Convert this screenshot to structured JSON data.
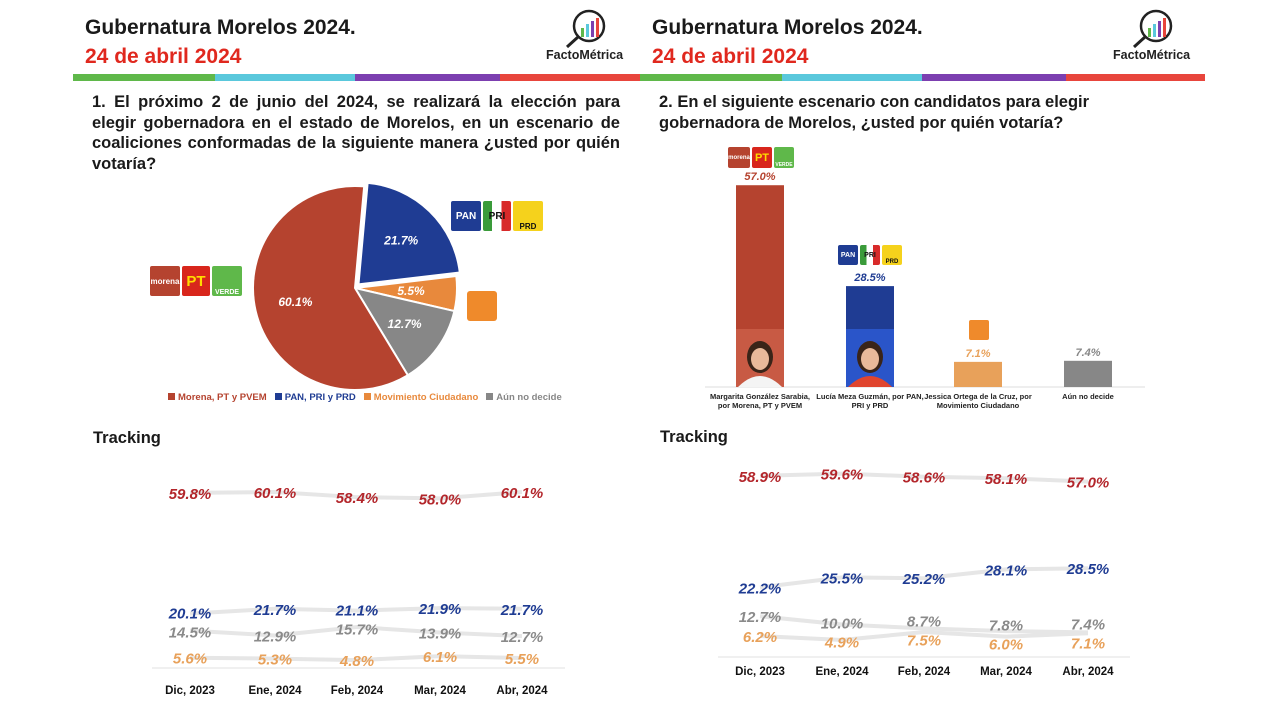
{
  "brand": "FactoMétrica",
  "colors": {
    "morena": "#b5432f",
    "pan": "#1f3c93",
    "mc": "#e8893c",
    "undecided": "#878787",
    "title_date": "#e0281e",
    "stripe": [
      "#5fb84a",
      "#5ac8dc",
      "#7c3fb0",
      "#e8453c"
    ]
  },
  "left": {
    "title": "Gubernatura Morelos 2024.",
    "date": "24 de abril 2024",
    "question": "1. El próximo 2 de junio del 2024, se realizará la elección para elegir gobernadora en el estado de Morelos, en un escenario de coaliciones conformadas de la siguiente manera ¿usted por quién votaría?",
    "tracking_title": "Tracking"
  },
  "right": {
    "title": "Gubernatura Morelos 2024.",
    "date": "24 de abril 2024",
    "question": "2. En el siguiente escenario con candidatos para elegir gobernadora de Morelos, ¿usted por quién votaría?",
    "tracking_title": "Tracking"
  },
  "logos": {
    "morena": "morena",
    "pt": "PT",
    "verde": "VERDE",
    "pan": "PAN",
    "pri": "PRI",
    "prd": "PRD"
  },
  "chart_data": [
    {
      "type": "pie",
      "legend_position": "bottom",
      "series": [
        {
          "name": "PAN, PRI y PRD",
          "value": 21.7,
          "label": "21.7%",
          "color": "#1f3c93"
        },
        {
          "name": "Movimiento Ciudadano",
          "value": 5.5,
          "label": "5.5%",
          "color": "#e8893c"
        },
        {
          "name": "Aún no decide",
          "value": 12.7,
          "label": "12.7%",
          "color": "#878787"
        },
        {
          "name": "Morena, PT y PVEM",
          "value": 60.1,
          "label": "60.1%",
          "color": "#b5432f"
        }
      ],
      "legend": [
        "Morena, PT y PVEM",
        "PAN, PRI y PRD",
        "Movimiento Ciudadano",
        "Aún no decide"
      ]
    },
    {
      "type": "bar",
      "categories": [
        "Margarita González Sarabia, por Morena, PT y PVEM",
        "Lucía Meza Guzmán, por PAN, PRI y PRD",
        "Jessica Ortega de la Cruz, por Movimiento Ciudadano",
        "Aún no decide"
      ],
      "values": [
        57.0,
        28.5,
        7.1,
        7.4
      ],
      "labels": [
        "57.0%",
        "28.5%",
        "7.1%",
        "7.4%"
      ],
      "colors": [
        "#b5432f",
        "#1f3c93",
        "#e8a15a",
        "#878787"
      ]
    },
    {
      "type": "line",
      "title": "Tracking",
      "categories": [
        "Dic, 2023",
        "Ene, 2024",
        "Feb, 2024",
        "Mar, 2024",
        "Abr, 2024"
      ],
      "series": [
        {
          "values": [
            59.8,
            60.1,
            58.4,
            58.0,
            60.1
          ],
          "labels": [
            "59.8%",
            "60.1%",
            "58.4%",
            "58.0%",
            "60.1%"
          ],
          "color": "#b3262b"
        },
        {
          "values": [
            20.1,
            21.7,
            21.1,
            21.9,
            21.7
          ],
          "labels": [
            "20.1%",
            "21.7%",
            "21.1%",
            "21.9%",
            "21.7%"
          ],
          "color": "#1f3c93"
        },
        {
          "values": [
            14.5,
            12.9,
            15.7,
            13.9,
            12.7
          ],
          "labels": [
            "14.5%",
            "12.9%",
            "15.7%",
            "13.9%",
            "12.7%"
          ],
          "color": "#8a8a8a"
        },
        {
          "values": [
            5.6,
            5.3,
            4.8,
            6.1,
            5.5
          ],
          "labels": [
            "5.6%",
            "5.3%",
            "4.8%",
            "6.1%",
            "5.5%"
          ],
          "color": "#e8a15a"
        }
      ]
    },
    {
      "type": "line",
      "title": "Tracking",
      "categories": [
        "Dic, 2023",
        "Ene, 2024",
        "Feb, 2024",
        "Mar, 2024",
        "Abr, 2024"
      ],
      "series": [
        {
          "values": [
            58.9,
            59.6,
            58.6,
            58.1,
            57.0
          ],
          "labels": [
            "58.9%",
            "59.6%",
            "58.6%",
            "58.1%",
            "57.0%"
          ],
          "color": "#b3262b"
        },
        {
          "values": [
            22.2,
            25.5,
            25.2,
            28.1,
            28.5
          ],
          "labels": [
            "22.2%",
            "25.5%",
            "25.2%",
            "28.1%",
            "28.5%"
          ],
          "color": "#1f3c93"
        },
        {
          "values": [
            12.7,
            10.0,
            8.7,
            7.8,
            7.4
          ],
          "labels": [
            "12.7%",
            "10.0%",
            "8.7%",
            "7.8%",
            "7.4%"
          ],
          "color": "#8a8a8a"
        },
        {
          "values": [
            6.2,
            4.9,
            7.5,
            6.0,
            7.1
          ],
          "labels": [
            "6.2%",
            "4.9%",
            "7.5%",
            "6.0%",
            "7.1%"
          ],
          "color": "#e8a15a"
        }
      ]
    }
  ]
}
